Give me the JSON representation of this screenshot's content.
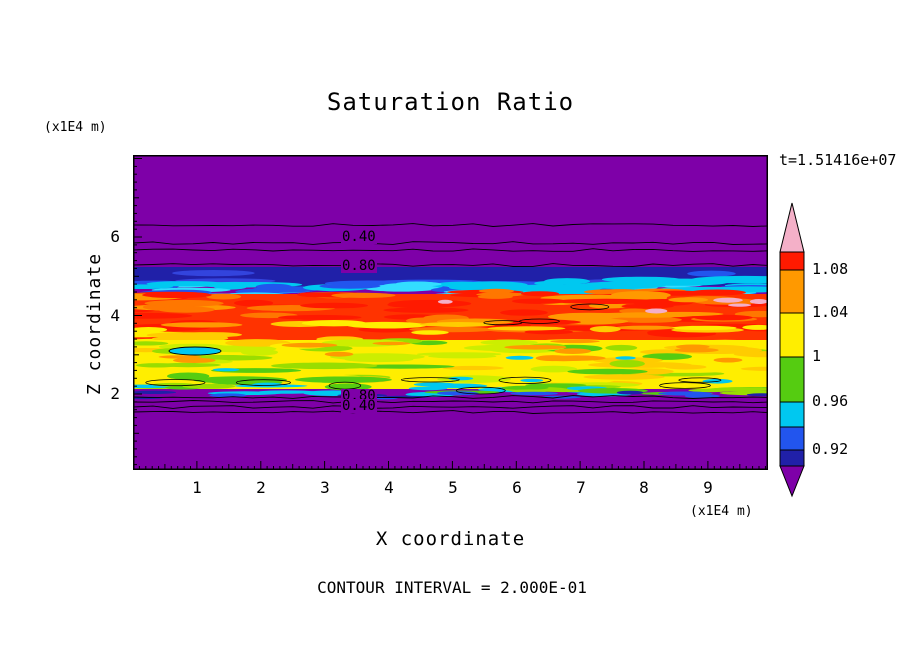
{
  "title": "Saturation Ratio",
  "timestamp": "t=1.51416e+07",
  "footer": "CONTOUR INTERVAL = 2.000E-01",
  "x_axis": {
    "label": "X coordinate",
    "unit": "(x1E4 m)",
    "ticks": [
      "1",
      "2",
      "3",
      "4",
      "5",
      "6",
      "7",
      "8",
      "9"
    ]
  },
  "y_axis": {
    "label": "Z coordinate",
    "unit": "(x1E4 m)",
    "ticks": [
      "6",
      "4",
      "2"
    ]
  },
  "contour_labels": [
    "0.40",
    "0.80",
    "0.80",
    "0.40"
  ],
  "colorbar": {
    "labels": [
      "1.08",
      "1.04",
      "1",
      "0.96",
      "0.92"
    ],
    "top_arrow": {
      "color": "#f4b0c8",
      "range": "> 1.12"
    },
    "bottom_arrow": {
      "color": "#7e00a8",
      "range": "< 0.84"
    },
    "segments": [
      {
        "color": "#ff1a00",
        "range": "1.08 - 1.12"
      },
      {
        "color": "#ff9900",
        "range": "1.04 - 1.08"
      },
      {
        "color": "#ffee00",
        "range": "1.00 - 1.04"
      },
      {
        "color": "#55cc11",
        "range": "0.96 - 1.00"
      },
      {
        "color": "#00c8f0",
        "range": "0.92 - 0.96"
      },
      {
        "color": "#2255ee",
        "range": "0.88 - 0.92"
      },
      {
        "color": "#2020a8",
        "range": "0.84 - 0.88"
      }
    ]
  },
  "palette": {
    "purple": "#7e00a8",
    "navy": "#2020a8",
    "blue": "#2255ee",
    "cyan": "#00c8f0",
    "green": "#55cc11",
    "chartreuse": "#99dd00",
    "lime": "#ccee00",
    "yellow": "#ffee00",
    "gold": "#ffcc00",
    "orange": "#ff9900",
    "orange2": "#ff7700",
    "red": "#ff1a00",
    "pink": "#f4afc8",
    "frame": "#000000"
  },
  "chart_data": {
    "type": "filled-contour",
    "title": "Saturation Ratio",
    "xlabel": "X coordinate",
    "ylabel": "Z coordinate",
    "x_unit": "(x1E4 m)",
    "y_unit": "(x1E4 m)",
    "time_label": "t=1.51416e+07",
    "x_range": [
      0,
      9.9
    ],
    "z_range": [
      0,
      8.1
    ],
    "x_ticks": [
      1,
      2,
      3,
      4,
      5,
      6,
      7,
      8,
      9
    ],
    "z_ticks": [
      2,
      4,
      6
    ],
    "contour_interval": 0.2,
    "contour_interval_note": "CONTOUR INTERVAL = 2.000E-01",
    "colorbar_labels": [
      1.08,
      1.04,
      1.0,
      0.96,
      0.92
    ],
    "fill_levels": [
      0.84,
      0.88,
      0.92,
      0.96,
      1.0,
      1.04,
      1.08,
      1.12
    ],
    "line_contours": [
      {
        "value": 0.2,
        "z": 6.3,
        "labeled": false
      },
      {
        "value": 0.4,
        "z": 5.85,
        "labeled": true
      },
      {
        "value": 0.6,
        "z": 5.6,
        "labeled": false
      },
      {
        "value": 0.8,
        "z": 5.3,
        "labeled": true
      },
      {
        "value": 0.8,
        "z": 1.93,
        "labeled": true
      },
      {
        "value": 0.6,
        "z": 1.78,
        "labeled": false
      },
      {
        "value": 0.4,
        "z": 1.65,
        "labeled": true
      },
      {
        "value": 0.2,
        "z": 1.5,
        "labeled": false
      }
    ],
    "z_profile": [
      {
        "z_from": 5.3,
        "z_to": 8.1,
        "saturation_ratio": "< 0.2",
        "fill": "purple"
      },
      {
        "z_from": 4.7,
        "z_to": 5.2,
        "saturation_ratio": "0.84 - 0.92",
        "fill": "navy / blue band"
      },
      {
        "z_from": 4.45,
        "z_to": 4.7,
        "saturation_ratio": "0.92 - 0.96",
        "fill": "cyan band, thicker on right half"
      },
      {
        "z_from": 3.4,
        "z_to": 4.5,
        "saturation_ratio": "1.04 - 1.12+",
        "fill": "red/orange mottled streaks, small pink spots > 1.12"
      },
      {
        "z_from": 2.25,
        "z_to": 3.4,
        "saturation_ratio": "0.96 - 1.04",
        "fill": "yellow with chartreuse/green streaks"
      },
      {
        "z_from": 1.95,
        "z_to": 2.25,
        "saturation_ratio": "0.88 - 0.96",
        "fill": "thin green/cyan/blue band"
      },
      {
        "z_from": 0.0,
        "z_to": 1.9,
        "saturation_ratio": "< 0.2",
        "fill": "purple"
      }
    ]
  }
}
